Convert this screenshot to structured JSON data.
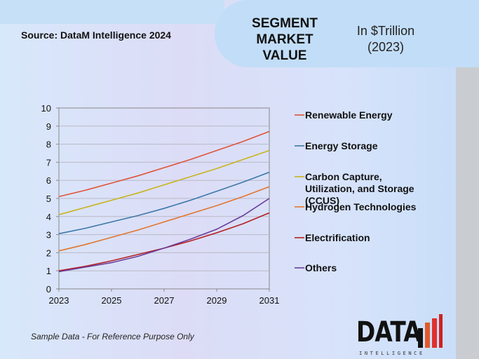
{
  "header": {
    "source": "Source: DataM Intelligence 2024",
    "title": "SEGMENT MARKET VALUE",
    "unit_line1": "In $Trillion",
    "unit_line2": "(2023)"
  },
  "footnote": "Sample Data - For Reference Purpose Only",
  "logo": {
    "main": "DATA",
    "sub": "INTELLIGENCE"
  },
  "chart_data": {
    "type": "line",
    "title": "SEGMENT MARKET VALUE",
    "xlabel": "",
    "ylabel": "",
    "xlim": [
      2023,
      2031
    ],
    "ylim": [
      0,
      10
    ],
    "x_ticks": [
      "2023",
      "2025",
      "2027",
      "2029",
      "2031"
    ],
    "y_ticks": [
      "0",
      "1",
      "2",
      "3",
      "4",
      "5",
      "6",
      "7",
      "8",
      "9",
      "10"
    ],
    "grid": true,
    "legend_position": "right",
    "x": [
      2023,
      2024,
      2025,
      2026,
      2027,
      2028,
      2029,
      2030,
      2031
    ],
    "series": [
      {
        "name": "Renewable Energy",
        "color": "#e0533a",
        "values": [
          5.1,
          5.45,
          5.85,
          6.25,
          6.7,
          7.15,
          7.65,
          8.15,
          8.7
        ]
      },
      {
        "name": "Energy Storage",
        "color": "#3c78a8",
        "values": [
          3.05,
          3.35,
          3.7,
          4.05,
          4.45,
          4.9,
          5.4,
          5.9,
          6.45
        ]
      },
      {
        "name": "Carbon Capture, Utilization, and Storage (CCUS)",
        "color": "#c8b41e",
        "values": [
          4.1,
          4.5,
          4.9,
          5.3,
          5.75,
          6.2,
          6.65,
          7.15,
          7.65
        ]
      },
      {
        "name": "Hydrogen Technologies",
        "color": "#e2762e",
        "values": [
          2.1,
          2.45,
          2.85,
          3.25,
          3.7,
          4.15,
          4.6,
          5.1,
          5.65
        ]
      },
      {
        "name": "Electrification",
        "color": "#b51f1f",
        "values": [
          1.0,
          1.25,
          1.55,
          1.9,
          2.25,
          2.65,
          3.1,
          3.6,
          4.2
        ]
      },
      {
        "name": "Others",
        "color": "#6a3d9a",
        "values": [
          0.95,
          1.2,
          1.45,
          1.8,
          2.25,
          2.75,
          3.3,
          4.05,
          5.0
        ]
      }
    ]
  }
}
